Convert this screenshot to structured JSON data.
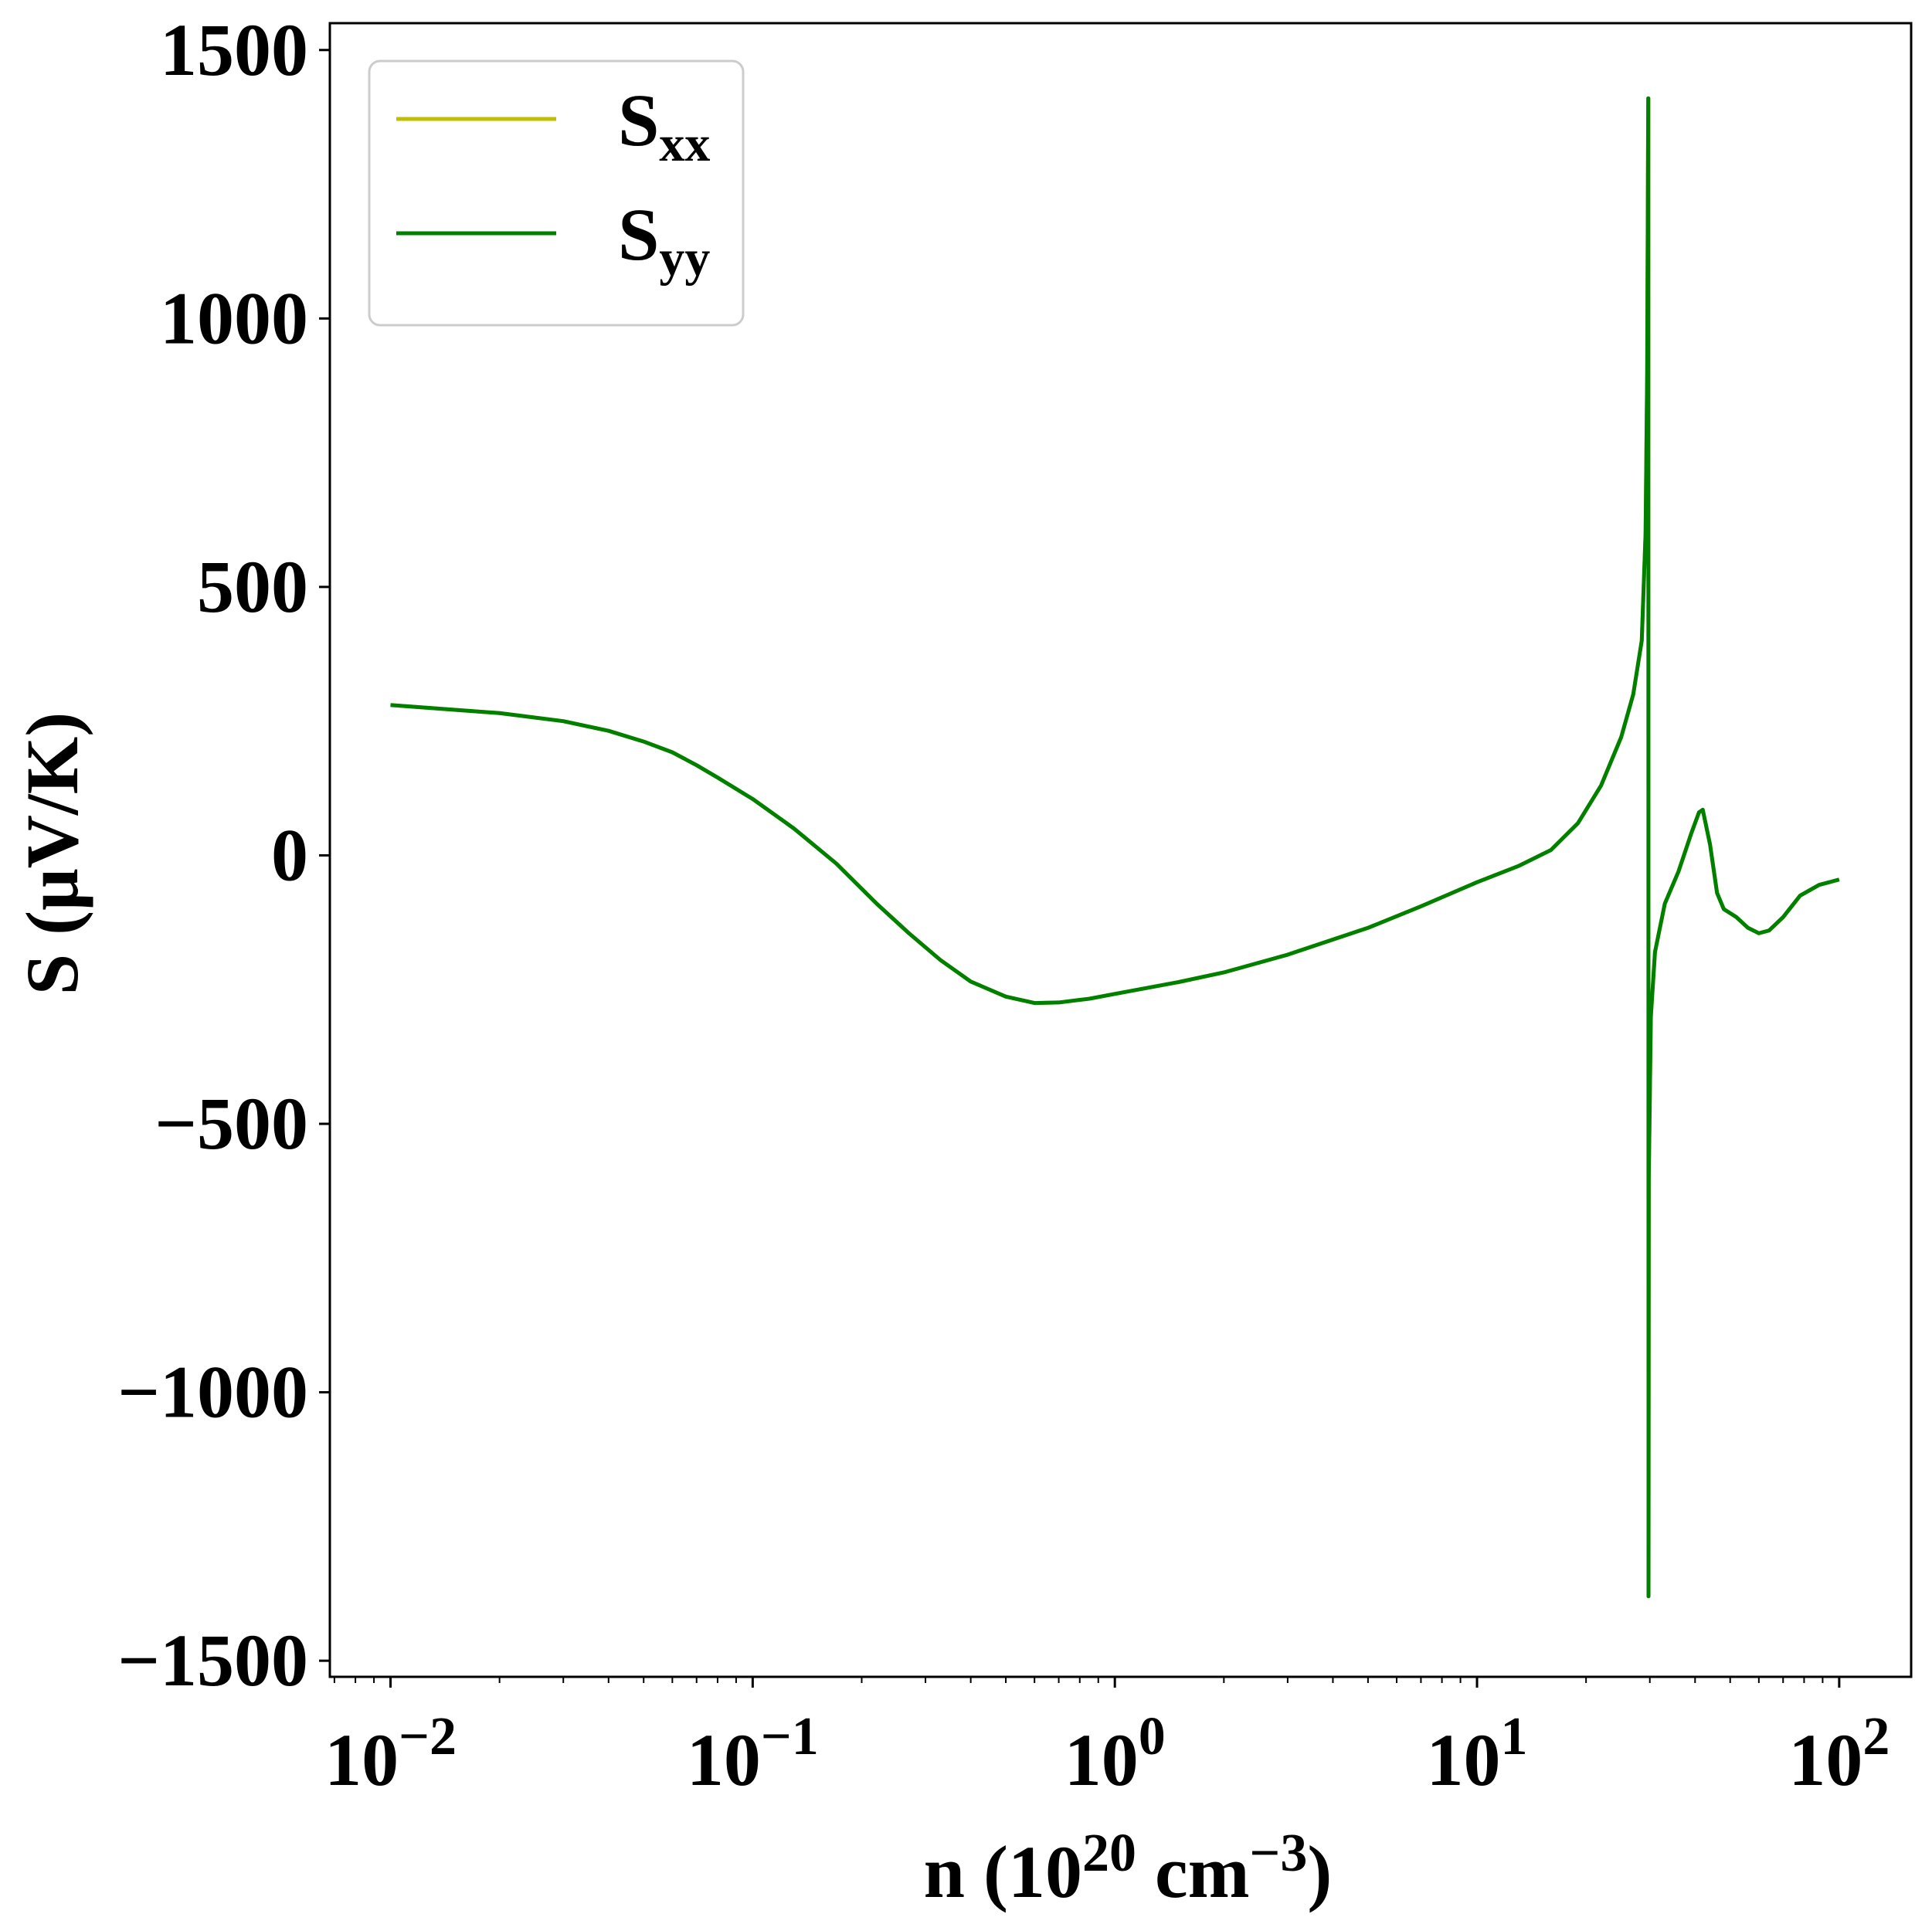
{
  "chart_data": {
    "type": "line",
    "xscale": "log",
    "xlim": [
      0.0068,
      158
    ],
    "ylim": [
      -1530,
      1550
    ],
    "xlabel": {
      "text": "n (10",
      "sup1": "20",
      "mid": " cm",
      "sup2": "−3",
      "end": ")"
    },
    "ylabel": "S (μV/K)",
    "yticks": [
      {
        "value": 1500,
        "label": "1500"
      },
      {
        "value": 1000,
        "label": "1000"
      },
      {
        "value": 500,
        "label": "500"
      },
      {
        "value": 0,
        "label": "0"
      },
      {
        "value": -500,
        "label": "−500"
      },
      {
        "value": -1000,
        "label": "−1000"
      },
      {
        "value": -1500,
        "label": "−1500"
      }
    ],
    "xticks": [
      {
        "value": 0.01,
        "base": "10",
        "exp": "−2"
      },
      {
        "value": 0.1,
        "base": "10",
        "exp": "−1"
      },
      {
        "value": 1,
        "base": "10",
        "exp": "0"
      },
      {
        "value": 10,
        "base": "10",
        "exp": "1"
      },
      {
        "value": 100,
        "base": "10",
        "exp": "2"
      }
    ],
    "legend": {
      "position": "top-left",
      "entries": [
        {
          "base": "S",
          "sub": "xx",
          "color": "#bfbf00"
        },
        {
          "base": "S",
          "sub": "yy",
          "color": "#008000"
        }
      ]
    },
    "series": [
      {
        "name": "Sxx",
        "color": "#bfbf00",
        "points": [
          [
            0.01,
            280
          ],
          [
            0.02,
            265
          ],
          [
            0.03,
            250
          ],
          [
            0.04,
            232
          ],
          [
            0.05,
            212
          ],
          [
            0.06,
            192
          ],
          [
            0.07,
            168
          ],
          [
            0.08,
            145
          ],
          [
            0.1,
            105
          ],
          [
            0.13,
            50
          ],
          [
            0.17,
            -15
          ],
          [
            0.22,
            -90
          ],
          [
            0.27,
            -145
          ],
          [
            0.33,
            -195
          ],
          [
            0.4,
            -235
          ],
          [
            0.5,
            -263
          ],
          [
            0.6,
            -275
          ],
          [
            0.7,
            -274
          ],
          [
            0.85,
            -267
          ],
          [
            1,
            -258
          ],
          [
            1.5,
            -236
          ],
          [
            2,
            -218
          ],
          [
            3,
            -185
          ],
          [
            5,
            -135
          ],
          [
            7,
            -95
          ],
          [
            10,
            -50
          ],
          [
            13,
            -20
          ],
          [
            16,
            10
          ],
          [
            19,
            60
          ],
          [
            22,
            130
          ],
          [
            25,
            220
          ],
          [
            27,
            300
          ],
          [
            28.5,
            400
          ],
          [
            29.2,
            600
          ],
          [
            29.5,
            900
          ],
          [
            29.7,
            1410
          ],
          [
            29.72,
            1410
          ],
          [
            29.75,
            -1380
          ],
          [
            29.8,
            -600
          ],
          [
            30.2,
            -300
          ],
          [
            31,
            -180
          ],
          [
            33,
            -90
          ],
          [
            36,
            -30
          ],
          [
            39,
            40
          ],
          [
            41,
            80
          ],
          [
            42,
            85
          ],
          [
            44,
            20
          ],
          [
            46,
            -70
          ],
          [
            48,
            -100
          ],
          [
            52,
            -115
          ],
          [
            56,
            -135
          ],
          [
            60,
            -145
          ],
          [
            64,
            -140
          ],
          [
            70,
            -115
          ],
          [
            78,
            -75
          ],
          [
            88,
            -55
          ],
          [
            100,
            -45
          ]
        ]
      },
      {
        "name": "Syy",
        "color": "#008000",
        "points": [
          [
            0.01,
            280
          ],
          [
            0.02,
            265
          ],
          [
            0.03,
            250
          ],
          [
            0.04,
            232
          ],
          [
            0.05,
            212
          ],
          [
            0.06,
            192
          ],
          [
            0.07,
            168
          ],
          [
            0.08,
            145
          ],
          [
            0.1,
            105
          ],
          [
            0.13,
            50
          ],
          [
            0.17,
            -15
          ],
          [
            0.22,
            -90
          ],
          [
            0.27,
            -145
          ],
          [
            0.33,
            -195
          ],
          [
            0.4,
            -235
          ],
          [
            0.5,
            -263
          ],
          [
            0.6,
            -275
          ],
          [
            0.7,
            -274
          ],
          [
            0.85,
            -267
          ],
          [
            1,
            -258
          ],
          [
            1.5,
            -236
          ],
          [
            2,
            -218
          ],
          [
            3,
            -185
          ],
          [
            5,
            -135
          ],
          [
            7,
            -95
          ],
          [
            10,
            -50
          ],
          [
            13,
            -20
          ],
          [
            16,
            10
          ],
          [
            19,
            60
          ],
          [
            22,
            130
          ],
          [
            25,
            220
          ],
          [
            27,
            300
          ],
          [
            28.5,
            400
          ],
          [
            29.2,
            600
          ],
          [
            29.5,
            900
          ],
          [
            29.7,
            1410
          ],
          [
            29.72,
            1410
          ],
          [
            29.75,
            -1380
          ],
          [
            29.8,
            -600
          ],
          [
            30.2,
            -300
          ],
          [
            31,
            -180
          ],
          [
            33,
            -90
          ],
          [
            36,
            -30
          ],
          [
            39,
            40
          ],
          [
            41,
            80
          ],
          [
            42,
            85
          ],
          [
            44,
            20
          ],
          [
            46,
            -70
          ],
          [
            48,
            -100
          ],
          [
            52,
            -115
          ],
          [
            56,
            -135
          ],
          [
            60,
            -145
          ],
          [
            64,
            -140
          ],
          [
            70,
            -115
          ],
          [
            78,
            -75
          ],
          [
            88,
            -55
          ],
          [
            100,
            -45
          ]
        ]
      }
    ]
  }
}
